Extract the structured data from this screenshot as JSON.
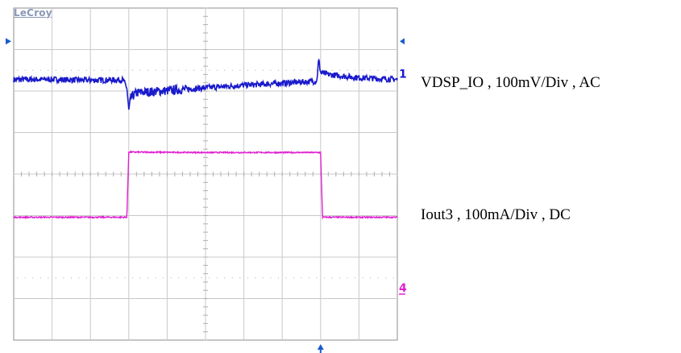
{
  "brand": {
    "logo_text": "LeCroy"
  },
  "channel_labels": {
    "ch1": "VDSP_IO , 100mV/Div , AC",
    "ch4": "Iout3 , 100mA/Div , DC"
  },
  "trace_markers": {
    "ch1": "1",
    "ch4": "4"
  },
  "colors": {
    "ch1": "#1a1acc",
    "ch4": "#e020d0",
    "grid": "#c8c8c8",
    "frame": "#a0a0a0",
    "marker": "#1a5ccc"
  },
  "chart_data": {
    "type": "line",
    "title": "",
    "xlabel": "",
    "ylabel": "",
    "grid": true,
    "divisions": {
      "x": 10,
      "y": 8
    },
    "xlim": [
      0,
      10
    ],
    "ylim": [
      -4,
      4
    ],
    "series": [
      {
        "name": "VDSP_IO , 100mV/Div , AC",
        "unit_per_div": "100mV",
        "coupling": "AC",
        "points": [
          [
            0.0,
            2.28
          ],
          [
            1.0,
            2.28
          ],
          [
            2.0,
            2.26
          ],
          [
            2.85,
            2.27
          ],
          [
            2.95,
            2.08
          ],
          [
            3.0,
            1.53
          ],
          [
            3.05,
            1.83
          ],
          [
            3.2,
            1.96
          ],
          [
            4.0,
            2.01
          ],
          [
            5.0,
            2.08
          ],
          [
            6.0,
            2.14
          ],
          [
            7.0,
            2.19
          ],
          [
            7.9,
            2.24
          ],
          [
            7.95,
            2.76
          ],
          [
            8.0,
            2.45
          ],
          [
            8.2,
            2.4
          ],
          [
            9.0,
            2.32
          ],
          [
            10.0,
            2.28
          ]
        ]
      },
      {
        "name": "Iout3 , 100mA/Div , DC",
        "unit_per_div": "100mA",
        "coupling": "DC",
        "points": [
          [
            0.0,
            -1.04
          ],
          [
            2.95,
            -1.04
          ],
          [
            3.0,
            0.53
          ],
          [
            5.0,
            0.52
          ],
          [
            8.0,
            0.52
          ],
          [
            8.05,
            -1.04
          ],
          [
            10.0,
            -1.04
          ]
        ]
      }
    ]
  }
}
